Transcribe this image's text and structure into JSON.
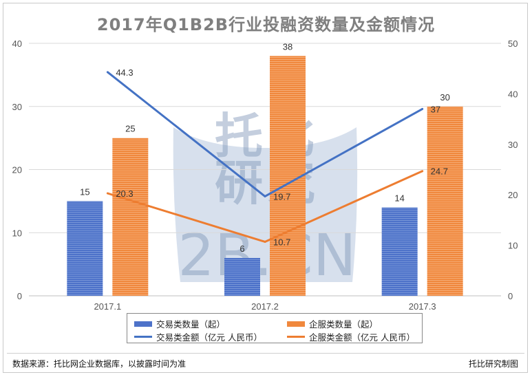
{
  "watermark": "托比研究 2B.CN",
  "footer": {
    "source": "数据来源：托比网企业数据库，以披露时间为准",
    "credit": "托比研究制图"
  },
  "colors": {
    "blue_bar": "#4d72c9",
    "orange_bar": "#f0883d",
    "blue_line": "#4472c4",
    "orange_line": "#ed7d31",
    "axis_text": "#555555",
    "grid": "#d9d9d9"
  },
  "chart_data": {
    "type": "bar",
    "title": "2017年Q1B2B行业投融资数量及金额情况",
    "categories": [
      "2017.1",
      "2017.2",
      "2017.3"
    ],
    "series": [
      {
        "name": "交易类数量（起）",
        "type": "bar",
        "axis": "left",
        "values": [
          15,
          6,
          14
        ]
      },
      {
        "name": "企服类数量（起）",
        "type": "bar",
        "axis": "left",
        "values": [
          25,
          38,
          30
        ]
      },
      {
        "name": "交易类金额（亿元  人民币）",
        "type": "line",
        "axis": "right",
        "values": [
          44.3,
          19.7,
          37
        ]
      },
      {
        "name": "企服类金额（亿元  人民币）",
        "type": "line",
        "axis": "right",
        "values": [
          20.3,
          10.7,
          24.7
        ]
      }
    ],
    "y_left": {
      "range": [
        0,
        40
      ],
      "ticks": [
        0,
        10,
        20,
        30,
        40
      ]
    },
    "y_right": {
      "range": [
        0,
        50
      ],
      "ticks": [
        0,
        10,
        20,
        30,
        40,
        50
      ]
    },
    "grid": true,
    "legend_position": "bottom"
  }
}
